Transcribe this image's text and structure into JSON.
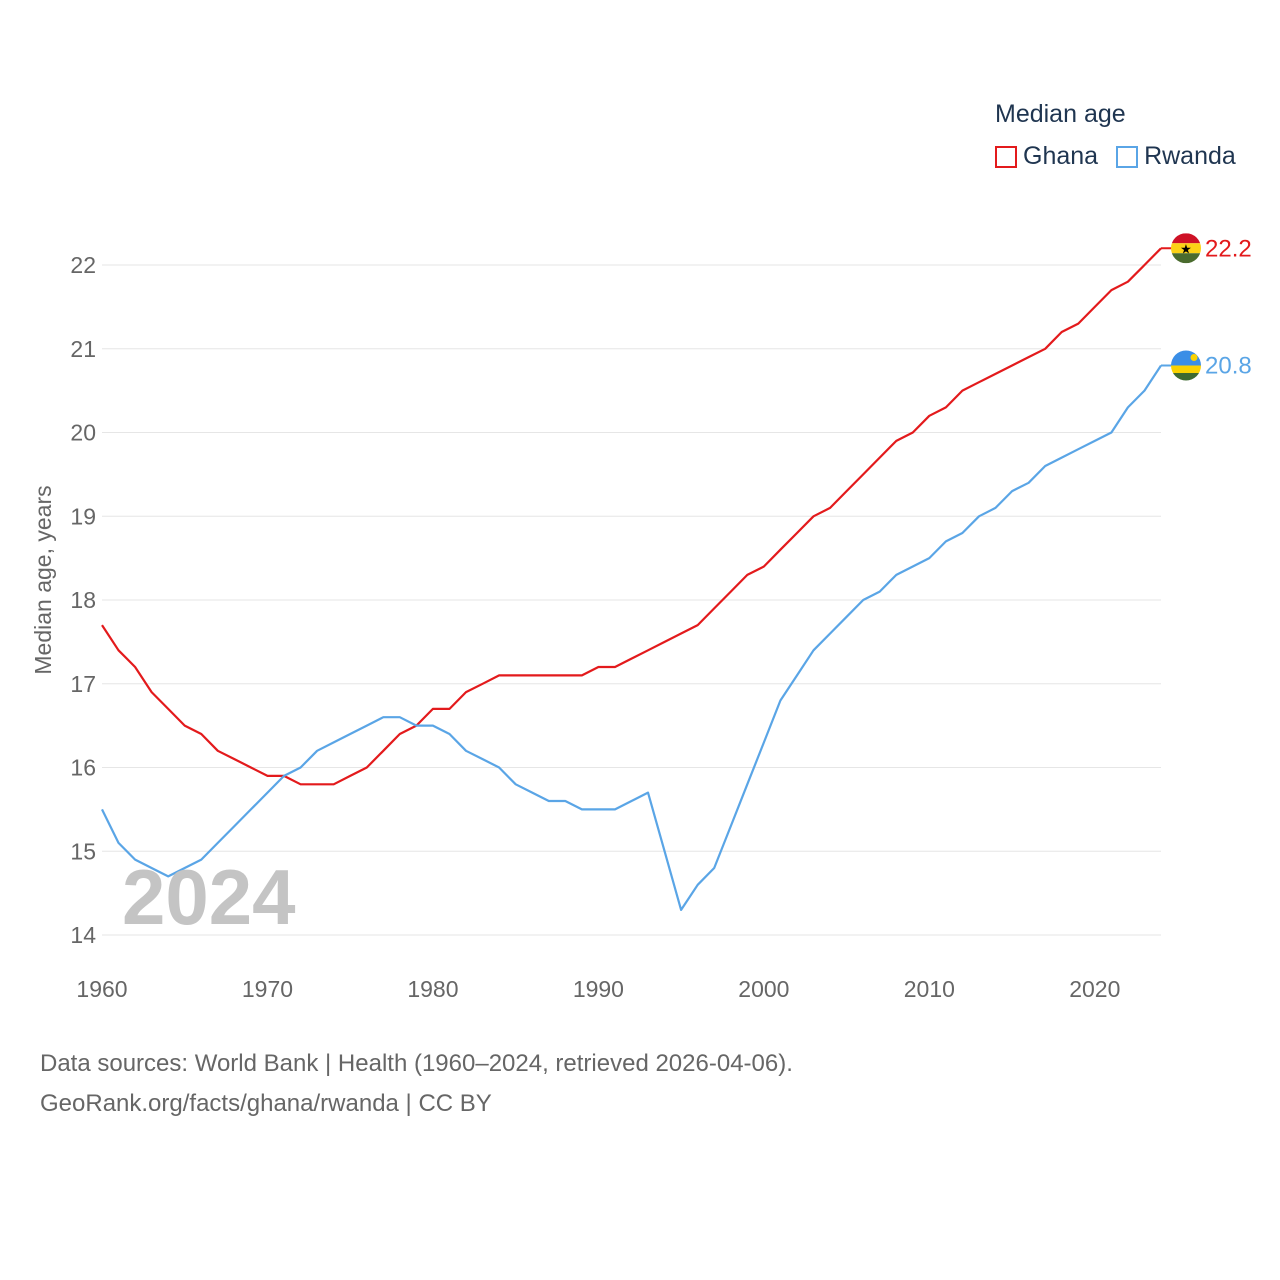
{
  "chart_data": {
    "type": "line",
    "ylabel": "Median age, years",
    "xlabel": "",
    "xlim": [
      1960,
      2024
    ],
    "ylim": [
      14,
      22.4
    ],
    "y_ticks": [
      14,
      15,
      16,
      17,
      18,
      19,
      20,
      21,
      22
    ],
    "x_ticks": [
      1960,
      1970,
      1980,
      1990,
      2000,
      2010,
      2020
    ],
    "grid": true,
    "legend": {
      "title": "Median age",
      "position": "top-right"
    },
    "current_year_label": "2024",
    "x": [
      1960,
      1961,
      1962,
      1963,
      1964,
      1965,
      1966,
      1967,
      1968,
      1969,
      1970,
      1971,
      1972,
      1973,
      1974,
      1975,
      1976,
      1977,
      1978,
      1979,
      1980,
      1981,
      1982,
      1983,
      1984,
      1985,
      1986,
      1987,
      1988,
      1989,
      1990,
      1991,
      1992,
      1993,
      1994,
      1995,
      1996,
      1997,
      1998,
      1999,
      2000,
      2001,
      2002,
      2003,
      2004,
      2005,
      2006,
      2007,
      2008,
      2009,
      2010,
      2011,
      2012,
      2013,
      2014,
      2015,
      2016,
      2017,
      2018,
      2019,
      2020,
      2021,
      2022,
      2023,
      2024
    ],
    "series": [
      {
        "name": "Ghana",
        "color": "#e31a1c",
        "end_label": "22.2",
        "flag": "ghana-flag-icon",
        "values": [
          17.7,
          17.4,
          17.2,
          16.9,
          16.7,
          16.5,
          16.4,
          16.2,
          16.1,
          16.0,
          15.9,
          15.9,
          15.8,
          15.8,
          15.8,
          15.9,
          16.0,
          16.2,
          16.4,
          16.5,
          16.7,
          16.7,
          16.9,
          17.0,
          17.1,
          17.1,
          17.1,
          17.1,
          17.1,
          17.1,
          17.2,
          17.2,
          17.3,
          17.4,
          17.5,
          17.6,
          17.7,
          17.9,
          18.1,
          18.3,
          18.4,
          18.6,
          18.8,
          19.0,
          19.1,
          19.3,
          19.5,
          19.7,
          19.9,
          20.0,
          20.2,
          20.3,
          20.5,
          20.6,
          20.7,
          20.8,
          20.9,
          21.0,
          21.2,
          21.3,
          21.5,
          21.7,
          21.8,
          22.0,
          22.2
        ]
      },
      {
        "name": "Rwanda",
        "color": "#5aa5e6",
        "end_label": "20.8",
        "flag": "rwanda-flag-icon",
        "values": [
          15.5,
          15.1,
          14.9,
          14.8,
          14.7,
          14.8,
          14.9,
          15.1,
          15.3,
          15.5,
          15.7,
          15.9,
          16.0,
          16.2,
          16.3,
          16.4,
          16.5,
          16.6,
          16.6,
          16.5,
          16.5,
          16.4,
          16.2,
          16.1,
          16.0,
          15.8,
          15.7,
          15.6,
          15.6,
          15.5,
          15.5,
          15.5,
          15.6,
          15.7,
          15.0,
          14.3,
          14.6,
          14.8,
          15.3,
          15.8,
          16.3,
          16.8,
          17.1,
          17.4,
          17.6,
          17.8,
          18.0,
          18.1,
          18.3,
          18.4,
          18.5,
          18.7,
          18.8,
          19.0,
          19.1,
          19.3,
          19.4,
          19.6,
          19.7,
          19.8,
          19.9,
          20.0,
          20.3,
          20.5,
          20.8
        ]
      }
    ]
  },
  "footer": {
    "line1": "Data sources: World Bank | Health (1960–2024, retrieved 2026-04-06).",
    "line2": "GeoRank.org/facts/ghana/rwanda | CC BY"
  },
  "colors": {
    "grid": "#e6e6e6",
    "axis_text": "#666666",
    "legend_text": "#1f3550",
    "watermark": "#c4c4c4"
  }
}
